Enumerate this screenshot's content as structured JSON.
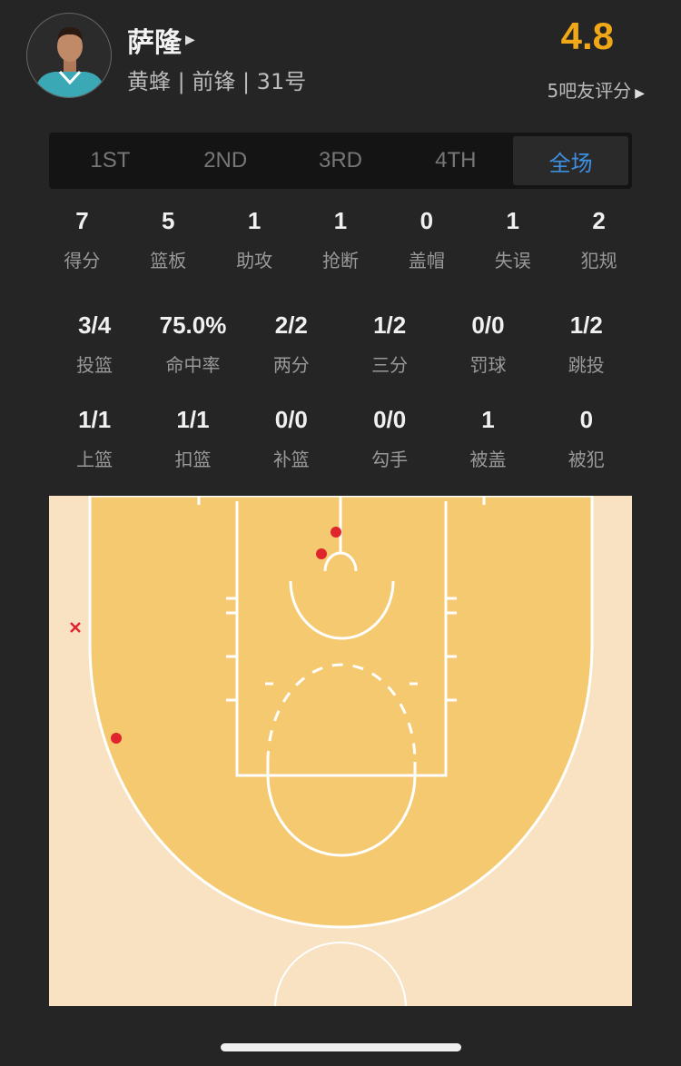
{
  "player": {
    "name": "萨隆",
    "info": "黄蜂 | 前锋 | 31号",
    "rating": "4.8",
    "raters": "5吧友评分"
  },
  "tabs": [
    {
      "label": "1ST"
    },
    {
      "label": "2ND"
    },
    {
      "label": "3RD"
    },
    {
      "label": "4TH"
    },
    {
      "label": "全场",
      "active": true
    }
  ],
  "stats_main": [
    {
      "value": "7",
      "label": "得分"
    },
    {
      "value": "5",
      "label": "篮板"
    },
    {
      "value": "1",
      "label": "助攻"
    },
    {
      "value": "1",
      "label": "抢断"
    },
    {
      "value": "0",
      "label": "盖帽"
    },
    {
      "value": "1",
      "label": "失误"
    },
    {
      "value": "2",
      "label": "犯规"
    }
  ],
  "stats_shooting": [
    {
      "value": "3/4",
      "label": "投篮"
    },
    {
      "value": "75.0%",
      "label": "命中率"
    },
    {
      "value": "2/2",
      "label": "两分"
    },
    {
      "value": "1/2",
      "label": "三分"
    },
    {
      "value": "0/0",
      "label": "罚球"
    },
    {
      "value": "1/2",
      "label": "跳投"
    }
  ],
  "stats_detail": [
    {
      "value": "1/1",
      "label": "上篮"
    },
    {
      "value": "1/1",
      "label": "扣篮"
    },
    {
      "value": "0/0",
      "label": "补篮"
    },
    {
      "value": "0/0",
      "label": "勾手"
    },
    {
      "value": "1",
      "label": "被盖"
    },
    {
      "value": "0",
      "label": "被犯"
    }
  ],
  "shot_chart": {
    "shots": [
      {
        "result": "made"
      },
      {
        "result": "made"
      },
      {
        "result": "made"
      },
      {
        "result": "missed"
      }
    ]
  },
  "colors": {
    "rating": "#f0a818",
    "active_tab": "#3d8fe0",
    "court_inner": "#f5c96f",
    "court_outer": "#f8e2c2",
    "shot": "#e0242e"
  }
}
